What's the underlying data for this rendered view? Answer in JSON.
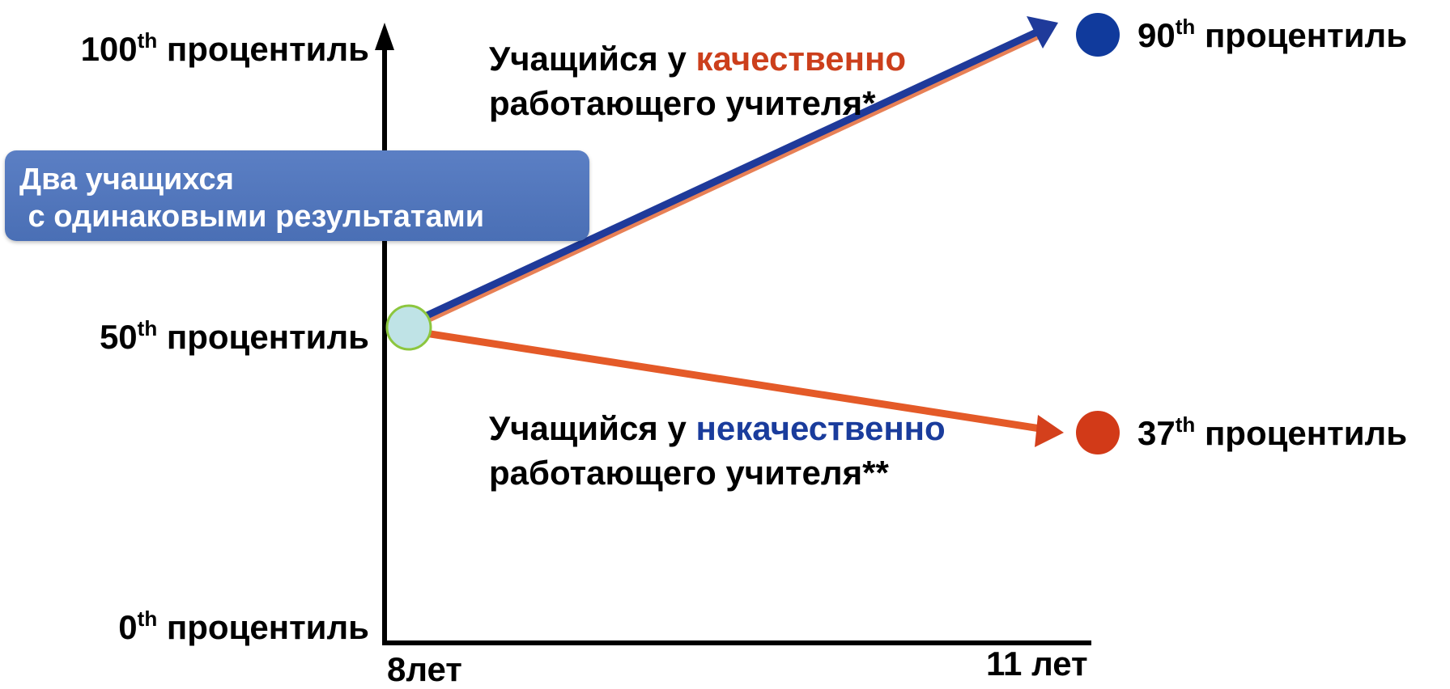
{
  "axis": {
    "y_labels": [
      {
        "num": "100",
        "sup": "th",
        "text": "процентиль"
      },
      {
        "num": "50",
        "sup": "th",
        "text": "процентиль"
      },
      {
        "num": "0",
        "sup": "th",
        "text": "процентиль"
      }
    ],
    "x_labels": [
      "8лет",
      "11 лет"
    ]
  },
  "callout": {
    "line1": "Два учащихся",
    "line2": " с одинаковыми результатами"
  },
  "upper": {
    "prefix": "Учащийся у ",
    "highlight": "качественно",
    "line2": "работающего учителя*",
    "end_label": {
      "num": "90",
      "sup": "th",
      "text": "процентиль"
    }
  },
  "lower": {
    "prefix": "Учащийся у ",
    "highlight": "некачественно",
    "line2": "работающего учителя**",
    "end_label": {
      "num": "37",
      "sup": "th",
      "text": "процентиль"
    }
  },
  "colors": {
    "blue_arrow": "#1f3a9a",
    "red_arrow": "#d4401c",
    "start_fill": "#bfe3e6",
    "start_stroke": "#8cc63e"
  }
}
